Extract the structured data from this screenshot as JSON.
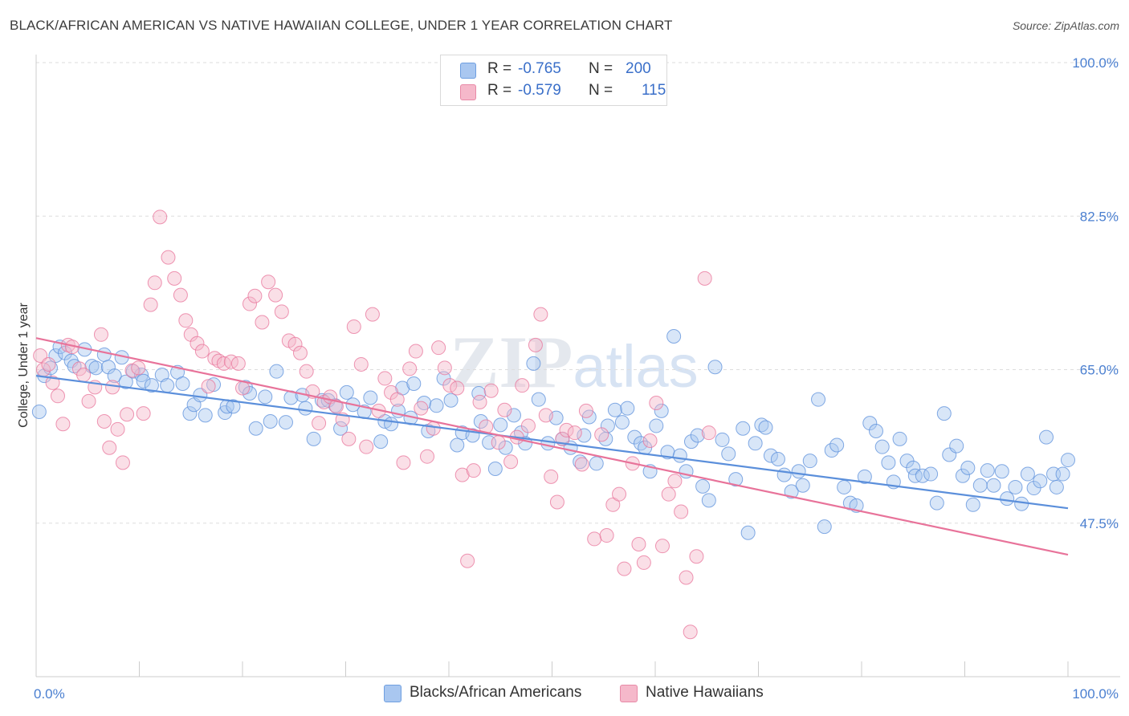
{
  "title": "BLACK/AFRICAN AMERICAN VS NATIVE HAWAIIAN COLLEGE, UNDER 1 YEAR CORRELATION CHART",
  "source": "Source: ZipAtlas.com",
  "watermark": "ZIPatlas",
  "legend": {
    "r_label": "R =",
    "n_label": "N =",
    "series": [
      {
        "r": "-0.765",
        "n": "200",
        "color": "#a9c7f0"
      },
      {
        "r": "-0.579",
        "n": "115",
        "color": "#f5b8ca"
      }
    ]
  },
  "bottom_legend": [
    {
      "label": "Blacks/African Americans",
      "color": "#a9c7f0"
    },
    {
      "label": "Native Hawaiians",
      "color": "#f5b8ca"
    }
  ],
  "chart_data": {
    "type": "scatter",
    "title": "BLACK/AFRICAN AMERICAN VS NATIVE HAWAIIAN COLLEGE, UNDER 1 YEAR CORRELATION CHART",
    "xlabel": "",
    "ylabel": "College, Under 1 year",
    "xlim": [
      0,
      100
    ],
    "ylim": [
      30,
      100
    ],
    "x_tick_labels": [
      "0.0%",
      "100.0%"
    ],
    "y_ticks": [
      47.5,
      65.0,
      82.5,
      100.0
    ],
    "y_tick_labels": [
      "47.5%",
      "65.0%",
      "82.5%",
      "100.0%"
    ],
    "grid": true,
    "legend_position": "top-center",
    "series": [
      {
        "name": "Blacks/African Americans",
        "color": "#5b8fdb",
        "fill": "#a9c7f0",
        "trend": {
          "x": [
            0,
            100
          ],
          "y": [
            64.3,
            49.2
          ]
        },
        "points": [
          [
            0.3,
            60.2
          ],
          [
            0.8,
            64.3
          ],
          [
            1.4,
            65.2
          ],
          [
            1.9,
            66.6
          ],
          [
            2.3,
            67.6
          ],
          [
            2.8,
            66.9
          ],
          [
            3.4,
            66.0
          ],
          [
            3.7,
            65.4
          ],
          [
            4.7,
            67.3
          ],
          [
            5.4,
            65.4
          ],
          [
            5.8,
            65.2
          ],
          [
            6.6,
            66.7
          ],
          [
            7.0,
            65.3
          ],
          [
            7.6,
            64.3
          ],
          [
            8.3,
            66.4
          ],
          [
            8.7,
            63.6
          ],
          [
            9.4,
            64.8
          ],
          [
            10.2,
            64.4
          ],
          [
            10.4,
            63.7
          ],
          [
            11.2,
            63.2
          ],
          [
            12.2,
            64.4
          ],
          [
            12.7,
            63.2
          ],
          [
            13.7,
            64.7
          ],
          [
            14.2,
            63.4
          ],
          [
            14.9,
            60.0
          ],
          [
            15.3,
            61.0
          ],
          [
            15.9,
            62.1
          ],
          [
            16.4,
            59.8
          ],
          [
            17.2,
            63.3
          ],
          [
            18.3,
            60.1
          ],
          [
            18.5,
            60.8
          ],
          [
            19.1,
            60.8
          ],
          [
            20.3,
            63.0
          ],
          [
            20.7,
            62.3
          ],
          [
            21.3,
            58.3
          ],
          [
            22.2,
            61.9
          ],
          [
            22.7,
            59.1
          ],
          [
            23.3,
            64.8
          ],
          [
            24.2,
            59.0
          ],
          [
            24.7,
            61.8
          ],
          [
            25.8,
            62.1
          ],
          [
            26.1,
            60.6
          ],
          [
            26.9,
            57.1
          ],
          [
            27.7,
            61.5
          ],
          [
            28.3,
            61.5
          ],
          [
            29.0,
            60.9
          ],
          [
            29.5,
            58.3
          ],
          [
            30.1,
            62.4
          ],
          [
            30.7,
            61.0
          ],
          [
            31.8,
            60.2
          ],
          [
            32.4,
            61.8
          ],
          [
            33.4,
            56.8
          ],
          [
            33.8,
            59.1
          ],
          [
            34.4,
            58.8
          ],
          [
            35.1,
            60.3
          ],
          [
            35.5,
            62.9
          ],
          [
            36.3,
            59.5
          ],
          [
            36.6,
            63.4
          ],
          [
            37.6,
            61.2
          ],
          [
            38.0,
            58.0
          ],
          [
            38.8,
            60.9
          ],
          [
            39.5,
            64.0
          ],
          [
            40.2,
            61.5
          ],
          [
            40.8,
            56.4
          ],
          [
            41.3,
            57.8
          ],
          [
            42.3,
            57.5
          ],
          [
            42.9,
            62.3
          ],
          [
            43.1,
            59.1
          ],
          [
            43.9,
            56.7
          ],
          [
            44.5,
            53.7
          ],
          [
            45.0,
            58.7
          ],
          [
            45.5,
            56.1
          ],
          [
            46.3,
            59.8
          ],
          [
            47.0,
            57.8
          ],
          [
            47.4,
            56.6
          ],
          [
            48.2,
            65.7
          ],
          [
            48.7,
            61.6
          ],
          [
            49.6,
            56.6
          ],
          [
            50.4,
            59.5
          ],
          [
            51.0,
            57.1
          ],
          [
            51.8,
            56.1
          ],
          [
            52.7,
            54.5
          ],
          [
            53.1,
            57.5
          ],
          [
            53.6,
            59.6
          ],
          [
            54.3,
            54.3
          ],
          [
            55.2,
            57.1
          ],
          [
            55.4,
            58.6
          ],
          [
            56.1,
            60.4
          ],
          [
            56.8,
            59.0
          ],
          [
            57.3,
            60.6
          ],
          [
            58.0,
            57.3
          ],
          [
            58.6,
            56.6
          ],
          [
            59.0,
            56.1
          ],
          [
            59.5,
            53.4
          ],
          [
            60.1,
            58.6
          ],
          [
            60.6,
            60.3
          ],
          [
            61.2,
            55.6
          ],
          [
            61.8,
            68.8
          ],
          [
            62.4,
            55.2
          ],
          [
            63.0,
            53.4
          ],
          [
            63.5,
            56.8
          ],
          [
            64.1,
            57.5
          ],
          [
            64.6,
            51.7
          ],
          [
            65.2,
            50.1
          ],
          [
            65.8,
            65.3
          ],
          [
            66.5,
            57.0
          ],
          [
            67.1,
            55.4
          ],
          [
            67.8,
            52.5
          ],
          [
            68.5,
            58.3
          ],
          [
            69.0,
            46.4
          ],
          [
            69.7,
            56.6
          ],
          [
            70.3,
            58.7
          ],
          [
            70.7,
            58.4
          ],
          [
            71.2,
            55.2
          ],
          [
            71.9,
            54.8
          ],
          [
            72.5,
            53.0
          ],
          [
            73.2,
            51.1
          ],
          [
            73.9,
            53.4
          ],
          [
            74.3,
            51.8
          ],
          [
            75.0,
            54.6
          ],
          [
            75.8,
            61.6
          ],
          [
            76.4,
            47.1
          ],
          [
            77.1,
            55.8
          ],
          [
            77.6,
            56.4
          ],
          [
            78.3,
            51.6
          ],
          [
            78.9,
            49.8
          ],
          [
            79.5,
            49.5
          ],
          [
            80.3,
            52.8
          ],
          [
            80.8,
            58.9
          ],
          [
            81.4,
            58.0
          ],
          [
            82.0,
            56.2
          ],
          [
            82.6,
            54.4
          ],
          [
            83.1,
            52.2
          ],
          [
            83.7,
            57.1
          ],
          [
            84.4,
            54.6
          ],
          [
            85.0,
            53.8
          ],
          [
            85.2,
            52.9
          ],
          [
            85.9,
            52.9
          ],
          [
            86.7,
            53.1
          ],
          [
            87.3,
            49.8
          ],
          [
            88.0,
            60.0
          ],
          [
            88.5,
            55.3
          ],
          [
            89.2,
            56.3
          ],
          [
            89.8,
            52.9
          ],
          [
            90.3,
            53.8
          ],
          [
            90.8,
            49.6
          ],
          [
            91.5,
            51.8
          ],
          [
            92.2,
            53.5
          ],
          [
            92.8,
            51.8
          ],
          [
            93.6,
            53.4
          ],
          [
            94.1,
            50.3
          ],
          [
            94.9,
            51.6
          ],
          [
            95.5,
            49.7
          ],
          [
            96.1,
            53.1
          ],
          [
            96.7,
            51.5
          ],
          [
            97.3,
            52.3
          ],
          [
            97.9,
            57.3
          ],
          [
            98.6,
            53.1
          ],
          [
            98.9,
            51.6
          ],
          [
            99.5,
            53.1
          ],
          [
            100.0,
            54.7
          ]
        ]
      },
      {
        "name": "Native Hawaiians",
        "color": "#e8739a",
        "fill": "#f5b8ca",
        "trend": {
          "x": [
            0,
            100
          ],
          "y": [
            68.6,
            43.9
          ]
        },
        "points": [
          [
            0.4,
            66.6
          ],
          [
            0.7,
            65.0
          ],
          [
            1.2,
            65.6
          ],
          [
            1.6,
            63.5
          ],
          [
            2.1,
            62.0
          ],
          [
            2.6,
            58.8
          ],
          [
            3.1,
            67.8
          ],
          [
            3.5,
            67.6
          ],
          [
            4.2,
            65.1
          ],
          [
            4.6,
            64.4
          ],
          [
            5.1,
            61.4
          ],
          [
            5.7,
            63.0
          ],
          [
            6.3,
            69.0
          ],
          [
            6.6,
            59.1
          ],
          [
            7.1,
            56.1
          ],
          [
            7.4,
            63.0
          ],
          [
            7.9,
            58.2
          ],
          [
            8.4,
            54.4
          ],
          [
            8.8,
            59.9
          ],
          [
            9.3,
            64.9
          ],
          [
            9.9,
            65.2
          ],
          [
            10.4,
            60.0
          ],
          [
            11.1,
            72.4
          ],
          [
            11.5,
            74.9
          ],
          [
            12.0,
            82.4
          ],
          [
            12.8,
            77.8
          ],
          [
            13.4,
            75.4
          ],
          [
            14.0,
            73.5
          ],
          [
            14.5,
            70.6
          ],
          [
            15.0,
            69.0
          ],
          [
            15.6,
            68.0
          ],
          [
            16.1,
            67.1
          ],
          [
            16.7,
            63.1
          ],
          [
            17.3,
            66.3
          ],
          [
            17.7,
            66.0
          ],
          [
            18.2,
            65.7
          ],
          [
            18.9,
            65.9
          ],
          [
            19.6,
            65.7
          ],
          [
            20.0,
            62.9
          ],
          [
            20.7,
            72.5
          ],
          [
            21.2,
            73.4
          ],
          [
            21.9,
            70.4
          ],
          [
            22.5,
            75.0
          ],
          [
            23.2,
            73.5
          ],
          [
            23.8,
            71.6
          ],
          [
            24.5,
            68.3
          ],
          [
            25.1,
            67.9
          ],
          [
            25.6,
            66.9
          ],
          [
            26.2,
            64.8
          ],
          [
            26.8,
            62.5
          ],
          [
            27.4,
            58.9
          ],
          [
            27.9,
            61.3
          ],
          [
            28.5,
            61.9
          ],
          [
            29.1,
            60.8
          ],
          [
            29.7,
            59.3
          ],
          [
            30.3,
            57.1
          ],
          [
            30.8,
            69.9
          ],
          [
            31.5,
            65.6
          ],
          [
            32.0,
            56.2
          ],
          [
            32.6,
            71.3
          ],
          [
            33.2,
            60.3
          ],
          [
            33.8,
            64.0
          ],
          [
            34.4,
            62.4
          ],
          [
            35.0,
            61.6
          ],
          [
            35.6,
            54.4
          ],
          [
            36.2,
            65.1
          ],
          [
            36.8,
            67.1
          ],
          [
            37.3,
            60.6
          ],
          [
            37.9,
            55.1
          ],
          [
            38.5,
            58.3
          ],
          [
            39.0,
            67.5
          ],
          [
            39.6,
            65.2
          ],
          [
            40.1,
            63.2
          ],
          [
            40.8,
            62.9
          ],
          [
            41.3,
            53.0
          ],
          [
            41.8,
            43.2
          ],
          [
            42.4,
            53.5
          ],
          [
            43.0,
            61.3
          ],
          [
            43.6,
            58.5
          ],
          [
            44.1,
            62.6
          ],
          [
            44.8,
            56.7
          ],
          [
            45.4,
            60.4
          ],
          [
            46.0,
            54.5
          ],
          [
            46.6,
            57.3
          ],
          [
            47.1,
            63.2
          ],
          [
            47.7,
            58.6
          ],
          [
            48.4,
            67.8
          ],
          [
            48.9,
            71.3
          ],
          [
            49.4,
            59.8
          ],
          [
            49.9,
            52.8
          ],
          [
            50.5,
            49.9
          ],
          [
            51.0,
            57.1
          ],
          [
            51.4,
            58.1
          ],
          [
            52.2,
            57.8
          ],
          [
            52.9,
            54.2
          ],
          [
            53.3,
            60.3
          ],
          [
            54.1,
            45.7
          ],
          [
            54.8,
            57.6
          ],
          [
            55.3,
            46.1
          ],
          [
            55.9,
            49.6
          ],
          [
            56.5,
            50.8
          ],
          [
            57.0,
            42.3
          ],
          [
            57.8,
            54.3
          ],
          [
            58.4,
            45.1
          ],
          [
            58.9,
            43.0
          ],
          [
            59.5,
            56.9
          ],
          [
            60.1,
            61.2
          ],
          [
            60.7,
            44.9
          ],
          [
            61.3,
            50.8
          ],
          [
            61.9,
            52.3
          ],
          [
            62.5,
            48.8
          ],
          [
            63.0,
            41.3
          ],
          [
            63.4,
            35.1
          ],
          [
            64.0,
            43.7
          ],
          [
            64.8,
            75.4
          ],
          [
            65.2,
            57.8
          ]
        ]
      }
    ]
  }
}
